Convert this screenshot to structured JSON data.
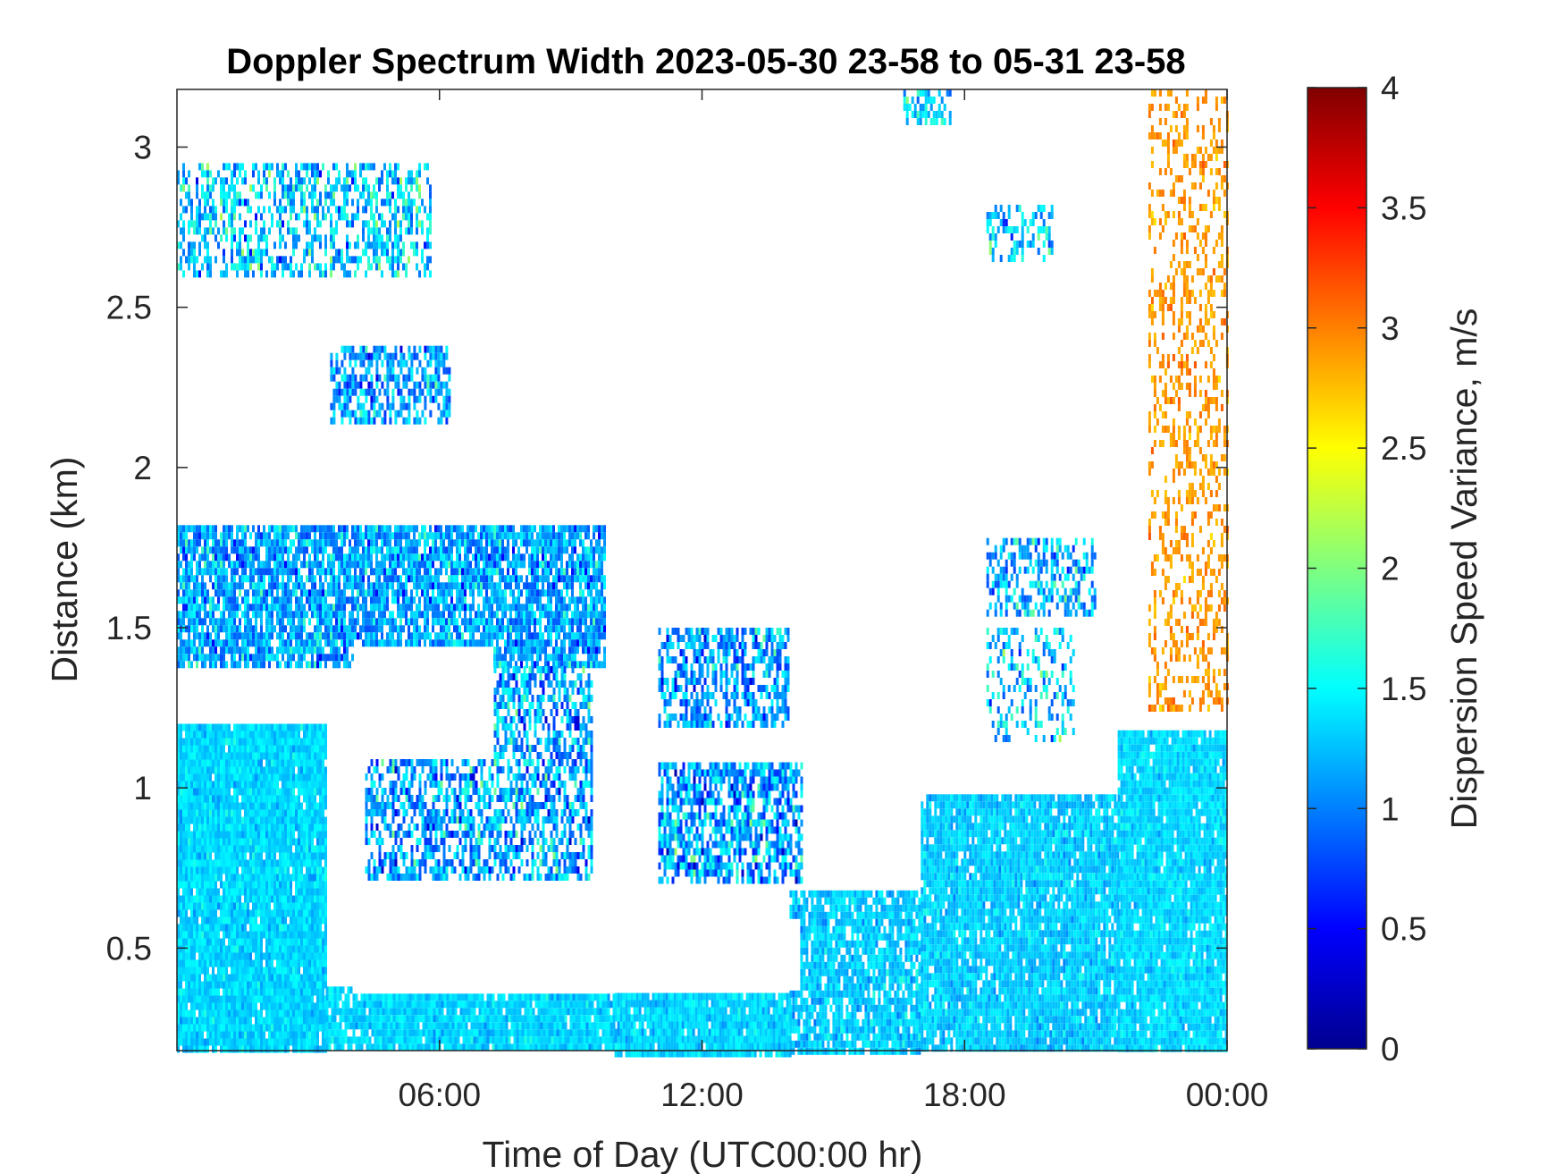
{
  "chart_data": {
    "type": "heatmap",
    "title": "Doppler Spectrum Width 2023-05-30 23-58 to 05-31 23-58",
    "xlabel": "Time of Day (UTC00:00 hr)",
    "ylabel": "Distance (km)",
    "x_range_hours": [
      0,
      24
    ],
    "y_range_km": [
      0.18,
      3.18
    ],
    "x_ticks": [
      {
        "value": 6,
        "label": "06:00"
      },
      {
        "value": 12,
        "label": "12:00"
      },
      {
        "value": 18,
        "label": "18:00"
      },
      {
        "value": 24,
        "label": "00:00"
      }
    ],
    "y_ticks": [
      {
        "value": 0.5,
        "label": "0.5"
      },
      {
        "value": 1,
        "label": "1"
      },
      {
        "value": 1.5,
        "label": "1.5"
      },
      {
        "value": 2,
        "label": "2"
      },
      {
        "value": 2.5,
        "label": "2.5"
      },
      {
        "value": 3,
        "label": "3"
      }
    ],
    "colorbar": {
      "label": "Dispersion Speed Variance, m/s",
      "colormap": "jet",
      "range": [
        0,
        4
      ],
      "ticks": [
        {
          "value": 0,
          "label": "0"
        },
        {
          "value": 0.5,
          "label": "0.5"
        },
        {
          "value": 1,
          "label": "1"
        },
        {
          "value": 1.5,
          "label": "1.5"
        },
        {
          "value": 2,
          "label": "2"
        },
        {
          "value": 2.5,
          "label": "2.5"
        },
        {
          "value": 3,
          "label": "3"
        },
        {
          "value": 3.5,
          "label": "3.5"
        },
        {
          "value": 4,
          "label": "4"
        }
      ]
    },
    "grid": false,
    "regions": [
      {
        "t0": 0.0,
        "t1": 3.4,
        "base": 1.2,
        "top": 0.18,
        "value": 1.35,
        "spread": 0.15,
        "density": 0.97
      },
      {
        "t0": 3.4,
        "t1": 10.0,
        "base": 0.38,
        "top": 0.18,
        "value": 1.35,
        "spread": 0.15,
        "density": 0.95
      },
      {
        "t0": 10.0,
        "t1": 14.0,
        "base": 0.36,
        "top": 0.18,
        "value": 1.35,
        "spread": 0.15,
        "density": 0.95
      },
      {
        "t0": 14.0,
        "t1": 17.0,
        "base": 0.68,
        "top": 0.18,
        "value": 1.3,
        "spread": 0.18,
        "density": 0.85
      },
      {
        "t0": 17.0,
        "t1": 21.5,
        "base": 0.98,
        "top": 0.18,
        "value": 1.3,
        "spread": 0.16,
        "density": 0.93
      },
      {
        "t0": 21.5,
        "t1": 24.0,
        "base": 1.18,
        "top": 0.18,
        "value": 1.35,
        "spread": 0.14,
        "density": 0.95
      },
      {
        "t0": 0.0,
        "t1": 9.8,
        "base": 1.82,
        "top": 1.38,
        "value": 1.15,
        "spread": 0.35,
        "density": 0.82
      },
      {
        "t0": 4.3,
        "t1": 9.5,
        "base": 1.38,
        "top": 0.7,
        "value": 1.15,
        "spread": 0.45,
        "density": 0.6
      },
      {
        "t0": 11.0,
        "t1": 14.0,
        "base": 1.5,
        "top": 1.2,
        "value": 1.1,
        "spread": 0.4,
        "density": 0.6
      },
      {
        "t0": 11.0,
        "t1": 14.3,
        "base": 1.08,
        "top": 0.72,
        "value": 1.15,
        "spread": 0.5,
        "density": 0.68
      },
      {
        "t0": 0.0,
        "t1": 5.8,
        "base": 2.95,
        "top": 2.6,
        "value": 1.3,
        "spread": 0.45,
        "density": 0.5
      },
      {
        "t0": 3.5,
        "t1": 6.2,
        "base": 2.38,
        "top": 2.15,
        "value": 1.15,
        "spread": 0.4,
        "density": 0.62
      },
      {
        "t0": 18.5,
        "t1": 21.0,
        "base": 1.78,
        "top": 1.55,
        "value": 1.2,
        "spread": 0.4,
        "density": 0.5
      },
      {
        "t0": 18.5,
        "t1": 20.5,
        "base": 1.5,
        "top": 1.15,
        "value": 1.3,
        "spread": 0.5,
        "density": 0.3
      },
      {
        "t0": 18.5,
        "t1": 20.0,
        "base": 2.82,
        "top": 2.65,
        "value": 1.3,
        "spread": 0.4,
        "density": 0.45
      },
      {
        "t0": 16.6,
        "t1": 17.7,
        "base": 3.18,
        "top": 3.08,
        "value": 1.3,
        "spread": 0.4,
        "density": 0.5
      },
      {
        "t0": 22.2,
        "t1": 24.0,
        "base": 3.18,
        "top": 1.25,
        "value": 2.9,
        "spread": 0.15,
        "density": 0.3
      }
    ],
    "gaps": [
      {
        "t0": 4.0,
        "t1": 7.2,
        "base": 1.45,
        "top": 1.1
      },
      {
        "t0": 4.0,
        "t1": 10.6,
        "base": 0.72,
        "top": 0.38
      },
      {
        "t0": 10.0,
        "t1": 14.2,
        "base": 0.6,
        "top": 0.37
      }
    ]
  }
}
